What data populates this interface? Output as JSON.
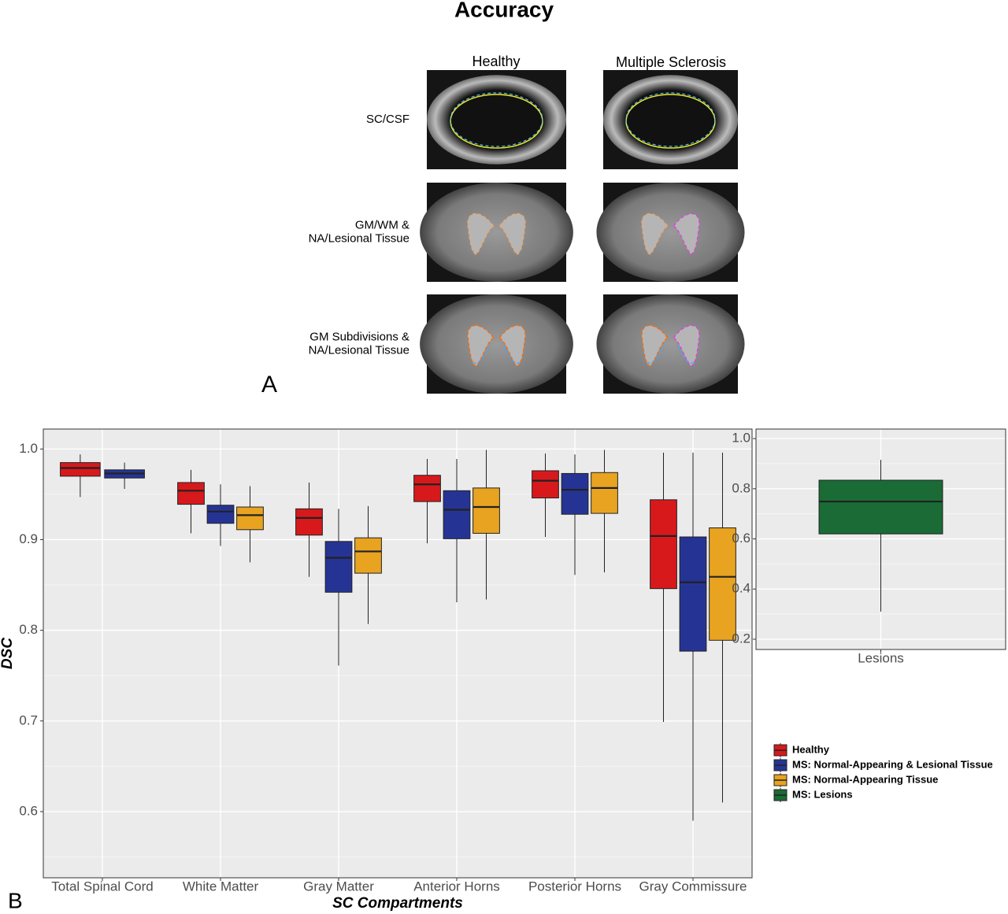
{
  "title": "Accuracy",
  "panel_a": {
    "label": "A",
    "columns": [
      "Healthy",
      "Multiple Sclerosis"
    ],
    "rows": [
      [
        "SC/CSF"
      ],
      [
        "GM/WM &",
        "NA/Lesional Tissue"
      ],
      [
        "GM Subdivisions &",
        "NA/Lesional Tissue"
      ]
    ]
  },
  "panel_b": {
    "label": "B"
  },
  "chart_data": [
    {
      "type": "box",
      "x_label": "SC Compartments",
      "y_label": "DSC",
      "categories": [
        "Total Spinal Cord",
        "White Matter",
        "Gray Matter",
        "Anterior Horns",
        "Posterior Horns",
        "Gray Commissure"
      ],
      "ylim": [
        0.527,
        1.022
      ],
      "yticks": [
        0.6,
        0.7,
        0.8,
        0.9,
        {
          "value": 1,
          "label": "1.0"
        }
      ],
      "yminorticks": [
        0.55,
        0.65,
        0.75,
        0.85,
        0.95
      ],
      "grid": true,
      "series": [
        {
          "name": "Healthy",
          "color": "#d7191c",
          "values": [
            {
              "min": 0.947,
              "q1": 0.97,
              "median": 0.979,
              "q3": 0.985,
              "max": 0.994
            },
            {
              "min": 0.907,
              "q1": 0.939,
              "median": 0.954,
              "q3": 0.963,
              "max": 0.977
            },
            {
              "min": 0.859,
              "q1": 0.905,
              "median": 0.924,
              "q3": 0.934,
              "max": 0.963
            },
            {
              "min": 0.896,
              "q1": 0.942,
              "median": 0.961,
              "q3": 0.971,
              "max": 0.989
            },
            {
              "min": 0.903,
              "q1": 0.946,
              "median": 0.965,
              "q3": 0.976,
              "max": 0.995
            },
            {
              "min": 0.699,
              "q1": 0.846,
              "median": 0.904,
              "q3": 0.944,
              "max": 0.996
            }
          ]
        },
        {
          "name": "MS: Normal-Appearing & Lesional Tissue",
          "color": "#253494",
          "values": [
            {
              "min": 0.956,
              "q1": 0.968,
              "median": 0.973,
              "q3": 0.977,
              "max": 0.985
            },
            {
              "min": 0.893,
              "q1": 0.918,
              "median": 0.931,
              "q3": 0.938,
              "max": 0.961
            },
            {
              "min": 0.761,
              "q1": 0.842,
              "median": 0.88,
              "q3": 0.898,
              "max": 0.934
            },
            {
              "min": 0.831,
              "q1": 0.901,
              "median": 0.933,
              "q3": 0.954,
              "max": 0.989
            },
            {
              "min": 0.861,
              "q1": 0.928,
              "median": 0.955,
              "q3": 0.973,
              "max": 0.994
            },
            {
              "min": 0.59,
              "q1": 0.777,
              "median": 0.853,
              "q3": 0.903,
              "max": 0.996
            }
          ]
        },
        {
          "name": "MS: Normal-Appearing Tissue",
          "color": "#e8a320",
          "values": [
            null,
            {
              "min": 0.875,
              "q1": 0.911,
              "median": 0.927,
              "q3": 0.936,
              "max": 0.959
            },
            {
              "min": 0.807,
              "q1": 0.863,
              "median": 0.887,
              "q3": 0.902,
              "max": 0.937
            },
            {
              "min": 0.834,
              "q1": 0.907,
              "median": 0.936,
              "q3": 0.957,
              "max": 0.999
            },
            {
              "min": 0.864,
              "q1": 0.929,
              "median": 0.957,
              "q3": 0.974,
              "max": 0.999
            },
            {
              "min": 0.61,
              "q1": 0.789,
              "median": 0.859,
              "q3": 0.913,
              "max": 0.996
            }
          ]
        }
      ]
    },
    {
      "type": "box",
      "categories": [
        "Lesions"
      ],
      "ylim": [
        0.159,
        1.038
      ],
      "yticks": [
        0.2,
        0.4,
        0.6,
        0.8,
        {
          "value": 1,
          "label": "1.0"
        }
      ],
      "yminorticks": [
        0.3,
        0.5,
        0.7,
        0.9
      ],
      "grid": true,
      "series": [
        {
          "name": "MS: Lesions",
          "color": "#1a6b35",
          "values": [
            {
              "min": 0.31,
              "q1": 0.62,
              "median": 0.749,
              "q3": 0.834,
              "max": 0.915
            }
          ]
        }
      ]
    }
  ]
}
